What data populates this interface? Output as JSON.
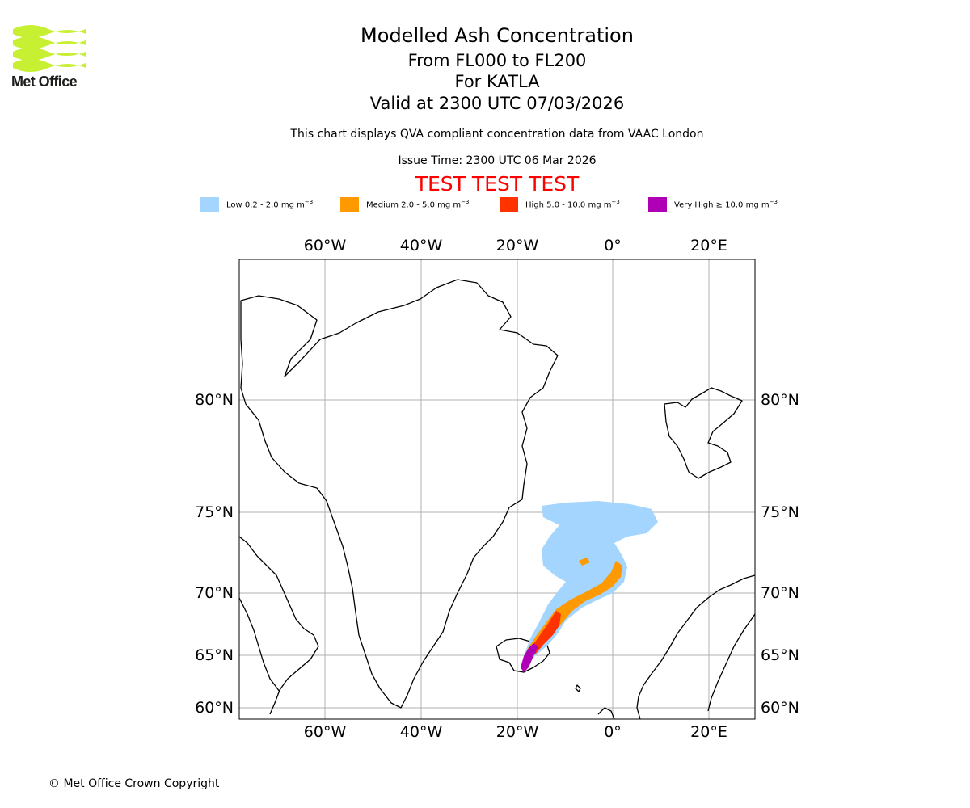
{
  "header": {
    "logo_text": "Met Office",
    "title": "Modelled Ash Concentration",
    "level_range": "From FL000 to FL200",
    "volcano": "For KATLA",
    "valid_time": "Valid at 2300 UTC 07/03/2026",
    "description": "This chart displays QVA compliant concentration data from VAAC London",
    "issue_time": "Issue Time: 2300 UTC 06 Mar 2026",
    "test_banner": "TEST TEST TEST"
  },
  "legend": [
    {
      "label": "Low 0.2 - 2.0 mg m",
      "exp": "−3",
      "color": "#a3d5ff"
    },
    {
      "label": "Medium 2.0 - 5.0 mg m",
      "exp": "−3",
      "color": "#ff9900"
    },
    {
      "label": "High 5.0 - 10.0 mg m",
      "exp": "−3",
      "color": "#ff3300"
    },
    {
      "label": "Very High  ≥  10.0 mg m",
      "exp": "−3",
      "color": "#b000b5"
    }
  ],
  "map": {
    "lon_ticks": [
      "60°W",
      "40°W",
      "20°W",
      "0°",
      "20°E"
    ],
    "lat_ticks": [
      "80°N",
      "75°N",
      "70°N",
      "65°N",
      "60°N"
    ]
  },
  "footer": {
    "copyright": "© Met Office Crown Copyright"
  },
  "colors": {
    "logo_green": "#c8f032",
    "banner_red": "#ff0000",
    "grid": "#b0b0b0"
  }
}
